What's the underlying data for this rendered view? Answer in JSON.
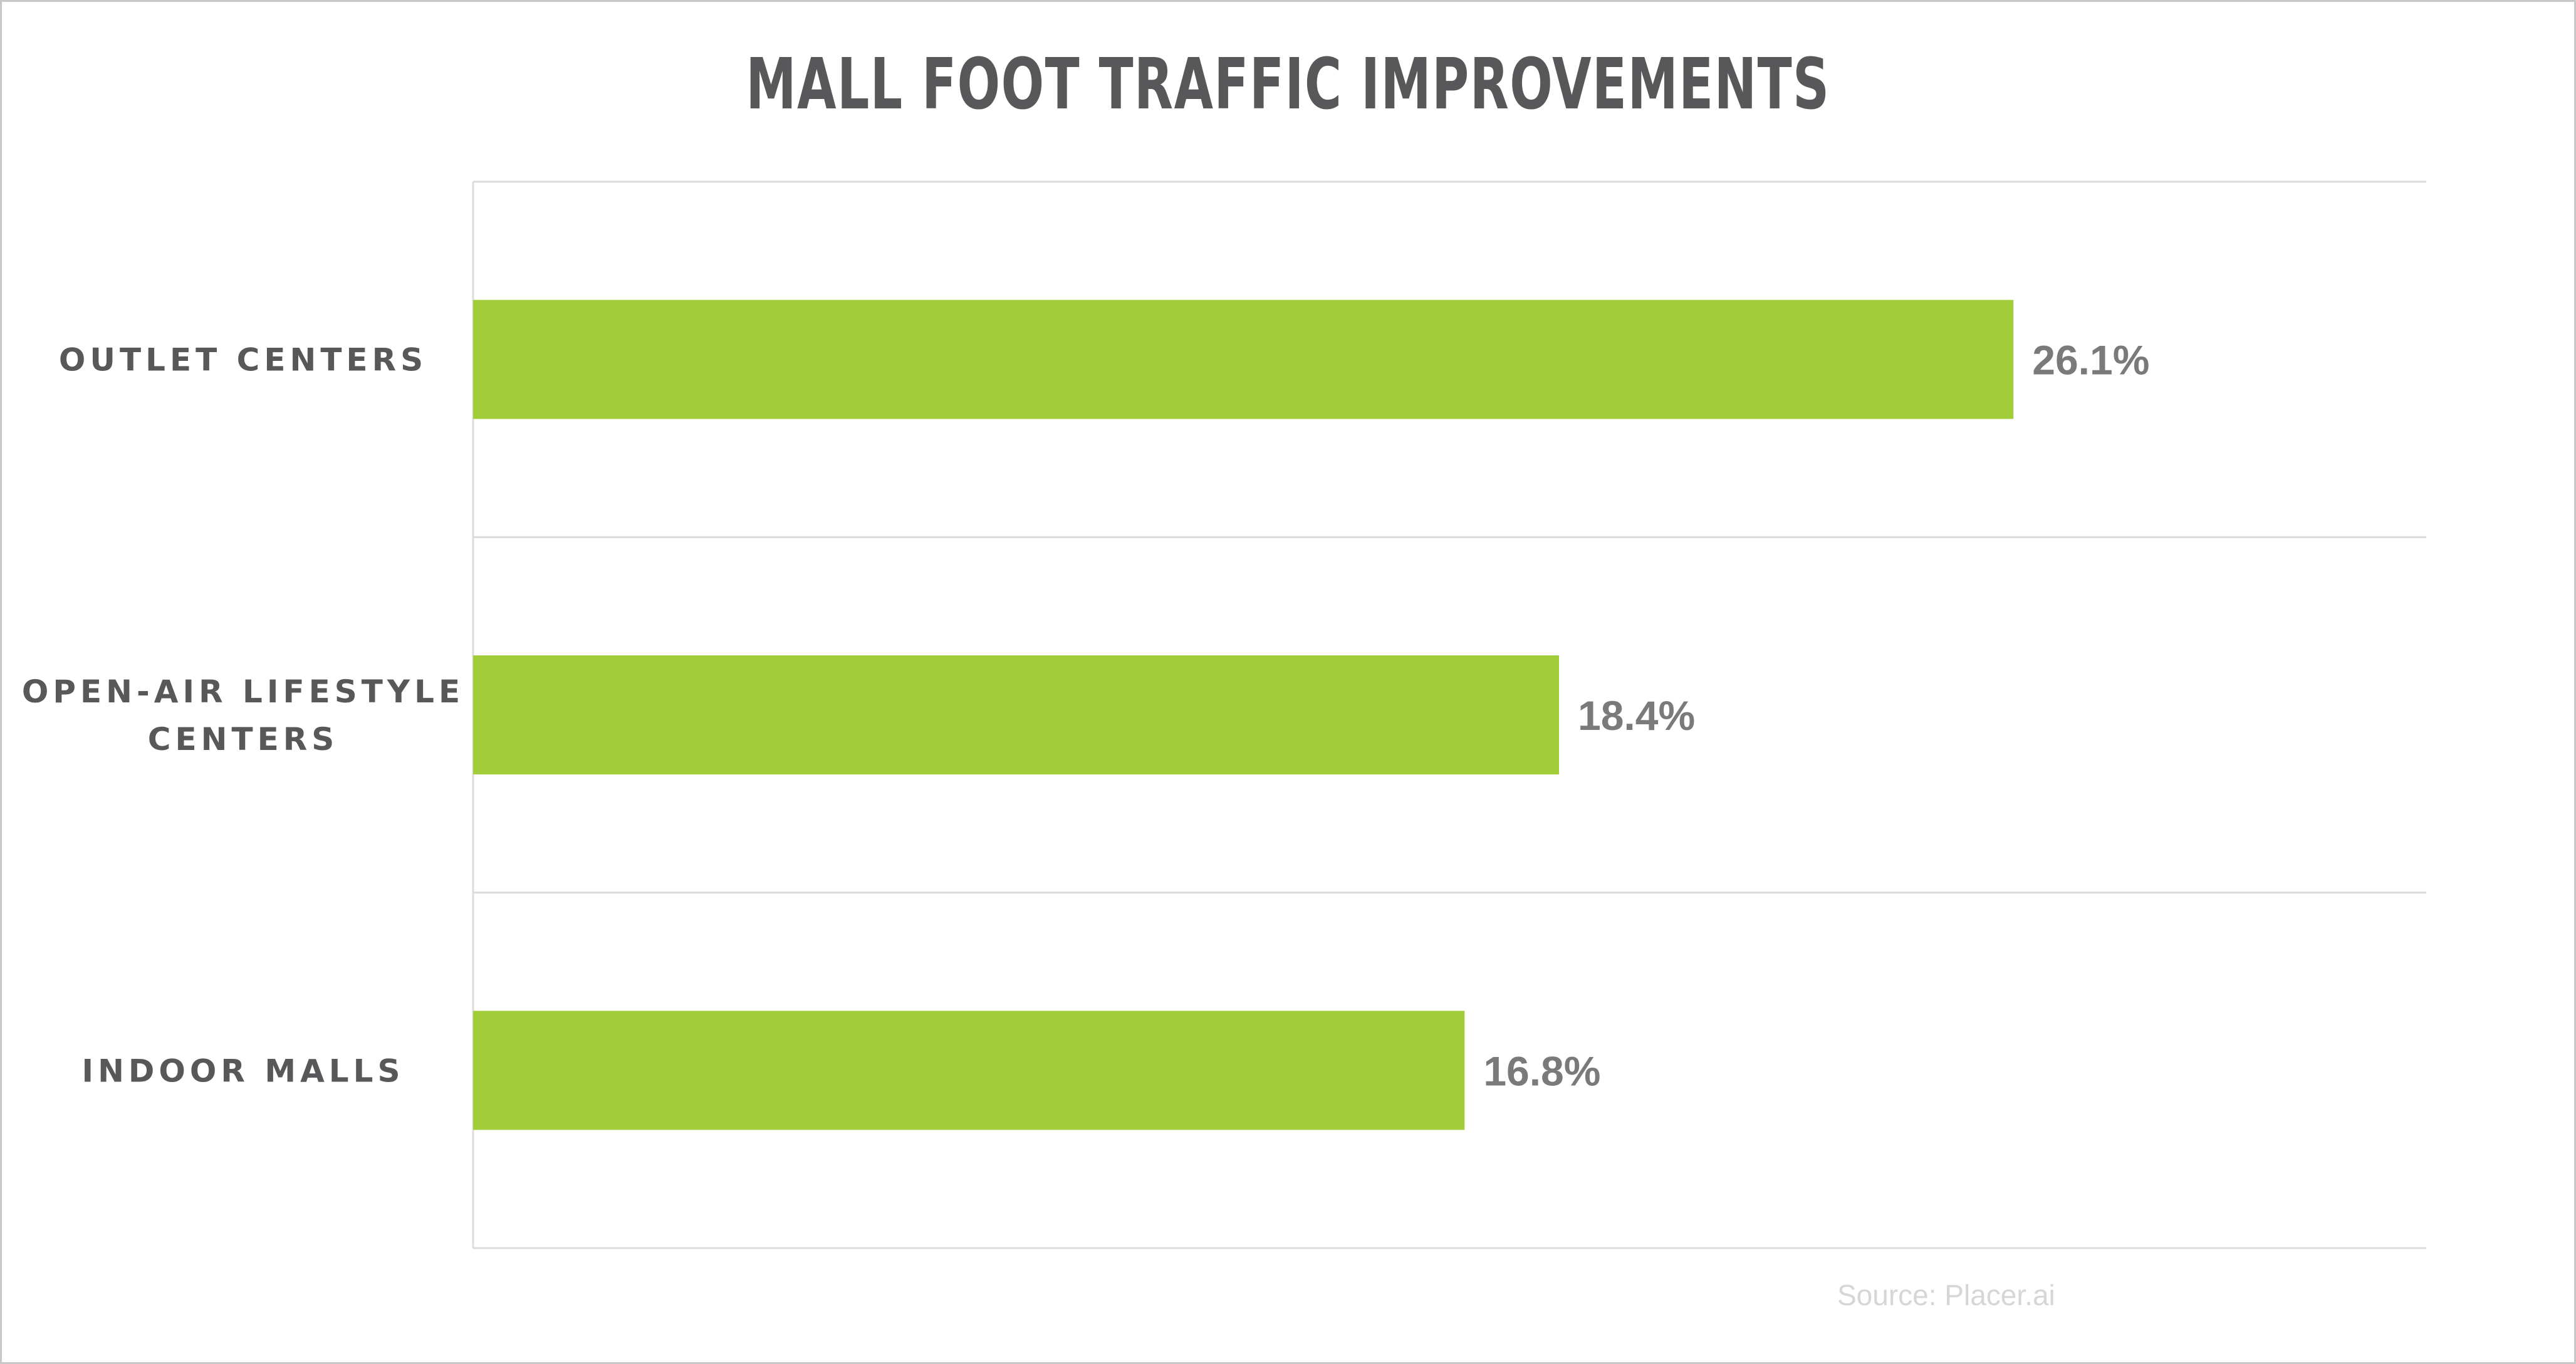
{
  "chart_data": {
    "type": "bar",
    "orientation": "horizontal",
    "title": "MALL FOOT TRAFFIC IMPROVEMENTS",
    "categories": [
      [
        "OUTLET CENTERS"
      ],
      [
        "OPEN-AIR LIFESTYLE",
        "CENTERS"
      ],
      [
        "INDOOR MALLS"
      ]
    ],
    "values": [
      26.1,
      18.4,
      16.8
    ],
    "value_labels": [
      "26.1%",
      "18.4%",
      "16.8%"
    ],
    "xlim": [
      0,
      30
    ],
    "grid": "horizontal separators between categories",
    "bar_color": "#a2cd3a",
    "xlabel": "",
    "ylabel": ""
  },
  "source": "Source: Placer.ai"
}
